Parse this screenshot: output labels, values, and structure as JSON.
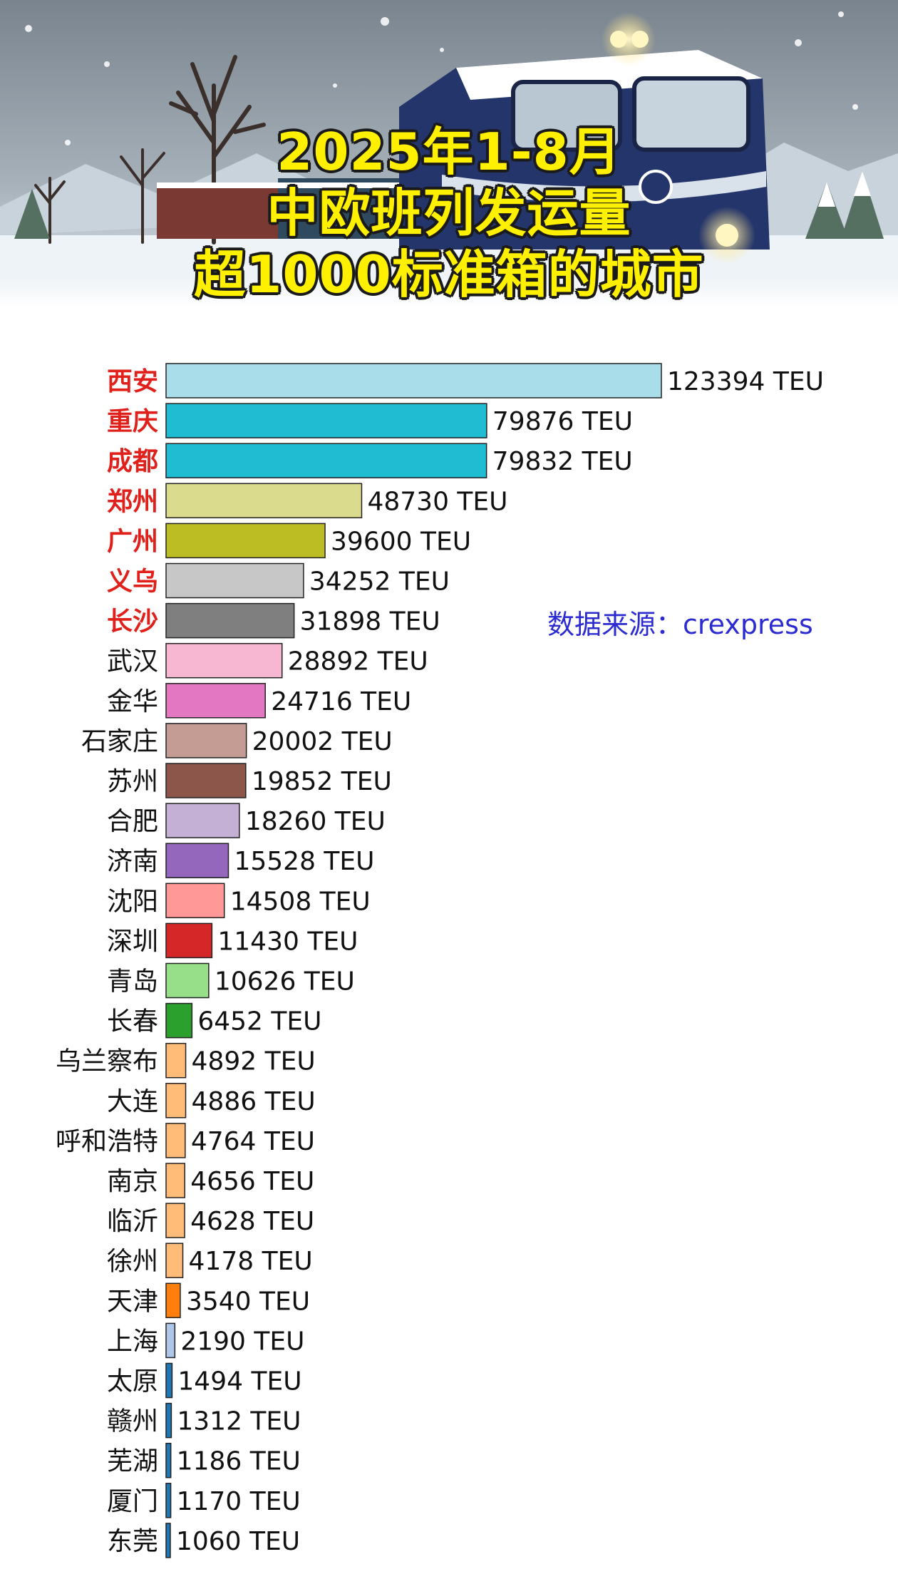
{
  "title": {
    "line1": "2025年1-8月",
    "line2": "中欧班列发运量",
    "line3": "超1000标准箱的城市"
  },
  "source": "数据来源：crexpress",
  "chart_data": {
    "type": "bar",
    "orientation": "horizontal",
    "unit": "TEU",
    "xlim": [
      0,
      123394
    ],
    "categories": [
      "西安",
      "重庆",
      "成都",
      "郑州",
      "广州",
      "义乌",
      "长沙",
      "武汉",
      "金华",
      "石家庄",
      "苏州",
      "合肥",
      "济南",
      "沈阳",
      "深圳",
      "青岛",
      "长春",
      "乌兰察布",
      "大连",
      "呼和浩特",
      "南京",
      "临沂",
      "徐州",
      "天津",
      "上海",
      "太原",
      "赣州",
      "芜湖",
      "厦门",
      "东莞"
    ],
    "values": [
      123394,
      79876,
      79832,
      48730,
      39600,
      34252,
      31898,
      28892,
      24716,
      20002,
      19852,
      18260,
      15528,
      14508,
      11430,
      10626,
      6452,
      4892,
      4886,
      4764,
      4656,
      4628,
      4178,
      3540,
      2190,
      1494,
      1312,
      1186,
      1170,
      1060
    ],
    "value_labels": [
      "123394 TEU",
      "79876 TEU",
      "79832 TEU",
      "48730 TEU",
      "39600 TEU",
      "34252 TEU",
      "31898 TEU",
      "28892 TEU",
      "24716 TEU",
      "20002 TEU",
      "19852 TEU",
      "18260 TEU",
      "15528 TEU",
      "14508 TEU",
      "11430 TEU",
      "10626 TEU",
      "6452 TEU",
      "4892 TEU",
      "4886 TEU",
      "4764 TEU",
      "4656 TEU",
      "4628 TEU",
      "4178 TEU",
      "3540 TEU",
      "2190 TEU",
      "1494 TEU",
      "1312 TEU",
      "1186 TEU",
      "1170 TEU",
      "1060 TEU"
    ],
    "bar_colors": [
      "#a9dde9",
      "#1fbcd2",
      "#1fbcd2",
      "#dbdb8d",
      "#bcbd22",
      "#c7c7c7",
      "#7f7f7f",
      "#f7b6d2",
      "#e377c2",
      "#c49c94",
      "#8c564b",
      "#c5b0d5",
      "#9467bd",
      "#ff9896",
      "#d62728",
      "#98df8a",
      "#2ca02c",
      "#ffbb78",
      "#ffbb78",
      "#ffbb78",
      "#ffbb78",
      "#ffbb78",
      "#ffbb78",
      "#ff7f0e",
      "#aec7e8",
      "#1f77b4",
      "#1f77b4",
      "#1f77b4",
      "#1f77b4",
      "#1f77b4"
    ],
    "label_colors": [
      "#e0201b",
      "#e0201b",
      "#e0201b",
      "#e0201b",
      "#e0201b",
      "#e0201b",
      "#e0201b",
      "#111111",
      "#111111",
      "#111111",
      "#111111",
      "#111111",
      "#111111",
      "#111111",
      "#111111",
      "#111111",
      "#111111",
      "#111111",
      "#111111",
      "#111111",
      "#111111",
      "#111111",
      "#111111",
      "#111111",
      "#111111",
      "#111111",
      "#111111",
      "#111111",
      "#111111",
      "#111111"
    ],
    "grid": false,
    "legend": "none"
  }
}
